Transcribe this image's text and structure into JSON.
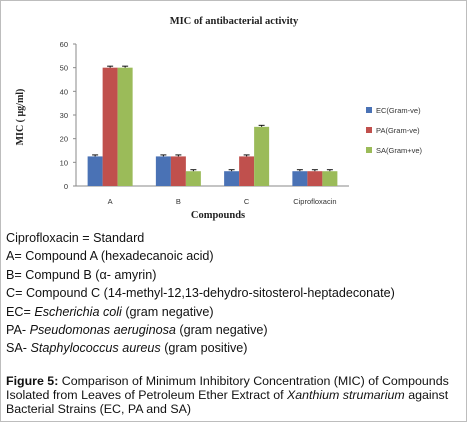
{
  "chart_data": {
    "type": "bar",
    "title": "MIC of antibacterial activity",
    "xlabel": "Compounds",
    "ylabel": "MIC ( μg/ml)",
    "ylim": [
      0,
      60
    ],
    "yticks": [
      0,
      10,
      20,
      30,
      40,
      50,
      60
    ],
    "categories": [
      "A",
      "B",
      "C",
      "Ciprofloxacin"
    ],
    "series": [
      {
        "name": "EC(Gram-ve)",
        "color": "#4a72b5",
        "values": [
          12.5,
          12.5,
          6.25,
          6.25
        ]
      },
      {
        "name": "PA(Gram-ve)",
        "color": "#c0504d",
        "values": [
          50,
          12.5,
          12.5,
          6.25
        ]
      },
      {
        "name": "SA(Gram+ve)",
        "color": "#9bbb59",
        "values": [
          50,
          6.25,
          25,
          6.25
        ]
      }
    ],
    "legend_position": "right",
    "grid": false
  },
  "notes": [
    {
      "text": "Ciprofloxacin = Standard"
    },
    {
      "text": "A= Compound A (hexadecanoic acid)"
    },
    {
      "text": "B= Compund B (α- amyrin)"
    },
    {
      "text": "C= Compound C (14-methyl-12,13-dehydro-sitosterol-heptadeconate)"
    },
    {
      "prefix": "EC= ",
      "italic": "Escherichia coli",
      "suffix": " (gram negative)"
    },
    {
      "prefix": "PA- ",
      "italic": "Pseudomonas aeruginosa",
      "suffix": " (gram negative)"
    },
    {
      "prefix": "SA- ",
      "italic": "Staphylococcus aureus",
      "suffix": " (gram positive)"
    }
  ],
  "caption": {
    "label": "Figure 5:",
    "text_before": " Comparison of Minimum Inhibitory Concentration (MIC) of Compounds Isolated from Leaves of Petroleum Ether Extract of ",
    "italic": "Xanthium strumarium",
    "text_after": " against Bacterial Strains (EC, PA and SA)"
  }
}
